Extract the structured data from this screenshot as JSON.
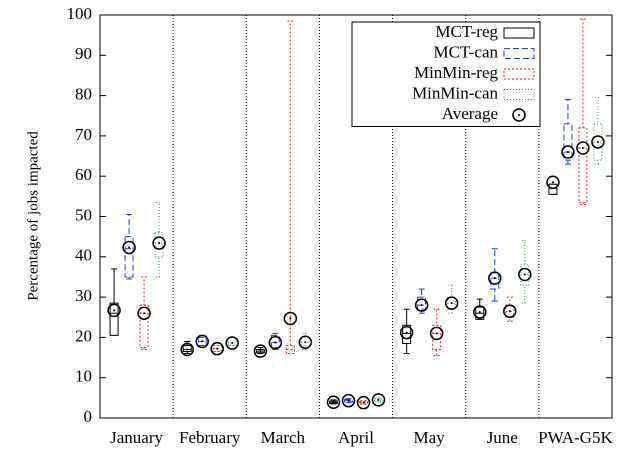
{
  "chart_data": {
    "type": "box",
    "y_label": "Percentage of jobs impacted",
    "categories": [
      "January",
      "February",
      "March",
      "April",
      "May",
      "June",
      "PWA-G5K"
    ],
    "ylim": [
      0,
      100
    ],
    "yticks": [
      0,
      10,
      20,
      30,
      40,
      50,
      60,
      70,
      80,
      90,
      100
    ],
    "mean_legend": "Average",
    "legend_position": "top-right",
    "series": [
      {
        "name": "MCT-reg",
        "color": "#000000",
        "dash": "none",
        "min": [
          21,
          16,
          16,
          3.5,
          16,
          24.5,
          55.5
        ],
        "q1": [
          20.5,
          16.5,
          16.2,
          3.6,
          18.5,
          24.5,
          55.5
        ],
        "median": [
          26,
          17,
          16.6,
          3.9,
          21,
          26,
          57
        ],
        "q3": [
          28.5,
          18,
          17,
          4.2,
          23,
          27.5,
          58
        ],
        "max": [
          37,
          19,
          17.5,
          4.5,
          27,
          29.5,
          58
        ],
        "mean": [
          26.7,
          17,
          16.6,
          3.9,
          21.2,
          26.3,
          58.5
        ]
      },
      {
        "name": "MCT-can",
        "color": "#1f3fd8",
        "dash": "6,3",
        "min": [
          34.5,
          18,
          17,
          3.8,
          26,
          29,
          63
        ],
        "q1": [
          35,
          18,
          17.5,
          4,
          27,
          32,
          64
        ],
        "median": [
          42,
          19,
          18.7,
          4.3,
          28,
          34.7,
          66
        ],
        "q3": [
          45,
          20,
          20.5,
          4.6,
          30,
          36,
          73
        ],
        "max": [
          50.5,
          20.5,
          21,
          4.8,
          32,
          42,
          79
        ],
        "mean": [
          42.3,
          19,
          18.7,
          4.3,
          28,
          34.7,
          66
        ]
      },
      {
        "name": "MinMin-reg",
        "color": "#e02020",
        "dash": "2,2",
        "min": [
          17,
          16.5,
          16,
          3.4,
          15.5,
          24,
          53
        ],
        "q1": [
          17.5,
          16.5,
          16,
          3.5,
          17,
          25,
          53.5
        ],
        "median": [
          26,
          17.2,
          17,
          3.8,
          21,
          26.5,
          67
        ],
        "q3": [
          28,
          18,
          18,
          4.1,
          23,
          28,
          72
        ],
        "max": [
          35,
          18.5,
          98.5,
          4.3,
          27,
          30,
          99
        ],
        "mean": [
          26,
          17.2,
          24.7,
          3.8,
          21,
          26.5,
          67
        ]
      },
      {
        "name": "MinMin-can",
        "color": "#20a030",
        "dash": "1,2",
        "min": [
          35,
          18,
          17,
          4,
          26,
          28.5,
          63
        ],
        "q1": [
          40,
          18,
          18,
          4.2,
          27,
          33,
          64
        ],
        "median": [
          43.4,
          18.6,
          18.8,
          4.5,
          28.5,
          35.6,
          68.5
        ],
        "q3": [
          46,
          20,
          20,
          4.8,
          30,
          38,
          73
        ],
        "max": [
          53.5,
          20,
          21,
          5,
          33,
          44,
          79.5
        ],
        "mean": [
          43.4,
          18.6,
          18.8,
          4.5,
          28.5,
          35.6,
          68.5
        ]
      }
    ]
  }
}
